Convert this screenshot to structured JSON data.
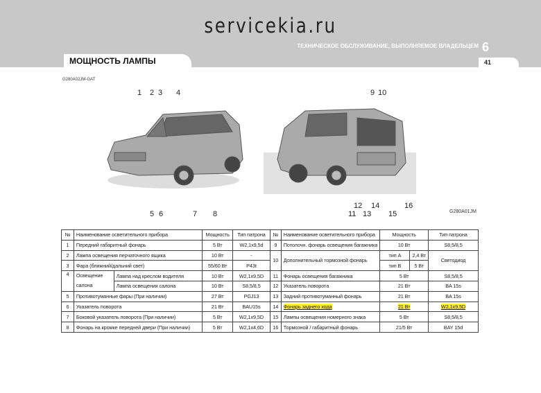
{
  "header": {
    "site": "servicekia.ru",
    "chapter": "ТЕХНИЧЕСКОЕ ОБСЛУЖИВАНИЕ, ВЫПОЛНЯЕМОЕ ВЛАДЕЛЬЦЕМ",
    "chapter_number": "6",
    "section_title": "МОЩНОСТЬ ЛАМПЫ",
    "page_number": "41"
  },
  "figure": {
    "code_top": "G280A02JM-GAT",
    "code_bottom": "G280A01JM",
    "callouts": [
      "1",
      "2",
      "3",
      "4",
      "5",
      "6",
      "7",
      "8",
      "9",
      "10",
      "11",
      "12",
      "13",
      "14",
      "15",
      "16"
    ]
  },
  "table": {
    "headers": {
      "no": "№",
      "name": "Наименование осветительного прибора",
      "power": "Мощность",
      "socket": "Тип патрона"
    },
    "left": [
      {
        "no": "1",
        "name": "Передний габаритный фонарь",
        "power": "5 Вт",
        "socket": "W2,1x9,5d"
      },
      {
        "no": "2",
        "name": "Лампа освещения перчаточного ящика",
        "power": "10 Вт",
        "socket": "-"
      },
      {
        "no": "3",
        "name": "Фара (ближний/дальний свет)",
        "power": "55/60 Вт",
        "socket": "P43t"
      },
      {
        "no": "4",
        "group": "Освещение салона",
        "name": "Лампа над креслом водителя",
        "power": "10 Вт",
        "socket": "W2,1x9,5D"
      },
      {
        "name": "Лампа освещения салона",
        "power": "10 Вт",
        "socket": "S8,5/8,5"
      },
      {
        "no": "5",
        "name": "Противотуманные фары (При наличии)",
        "power": "27 Вт",
        "socket": "PGJ13"
      },
      {
        "no": "6",
        "name": "Указатель поворота",
        "power": "21 Вт",
        "socket": "BAU15s"
      },
      {
        "no": "7",
        "name": "Боковой указатель поворота (При наличии)",
        "power": "5 Вт",
        "socket": "W2,1x9,5D"
      },
      {
        "no": "8",
        "name": "Фонарь на кромке передней двери (При наличии)",
        "power": "5 Вт",
        "socket": "W2,1x4,6D"
      }
    ],
    "right": [
      {
        "no": "9",
        "name": "Потолочн. фонарь освещения багажника",
        "power": "10 Вт",
        "socket": "S8,5/8,5"
      },
      {
        "no": "10",
        "name": "Дополнительный тормозной фонарь",
        "type_a": "тип A",
        "power_a": "2,4 Вт",
        "type_b": "тип B",
        "power_b": "5 Вт",
        "socket": "Светодиод"
      },
      {
        "no": "11",
        "name": "Фонарь освещения багажника",
        "power": "5 Вт",
        "socket": "S8,5/8,5"
      },
      {
        "no": "12",
        "name": "Указатель поворота",
        "power": "21 Вт",
        "socket": "BA 15s"
      },
      {
        "no": "13",
        "name": "Задний противотуманный фонарь",
        "power": "21 Вт",
        "socket": "BA 15s"
      },
      {
        "no": "14",
        "name": "Фонарь заднего хода",
        "power": "21 Вт",
        "socket": "W2,1x9,5D",
        "highlighted": true
      },
      {
        "no": "15",
        "name": "Лампы освещения номерного знака",
        "power": "5 Вт",
        "socket": "S8,5/8,5"
      },
      {
        "no": "16",
        "name": "Тормозной / габаритный фонарь",
        "power": "21/5 Вт",
        "socket": "BAY 15d"
      }
    ]
  },
  "colors": {
    "header_bg": "#c8c8c8",
    "highlight": "#ffef2a"
  }
}
